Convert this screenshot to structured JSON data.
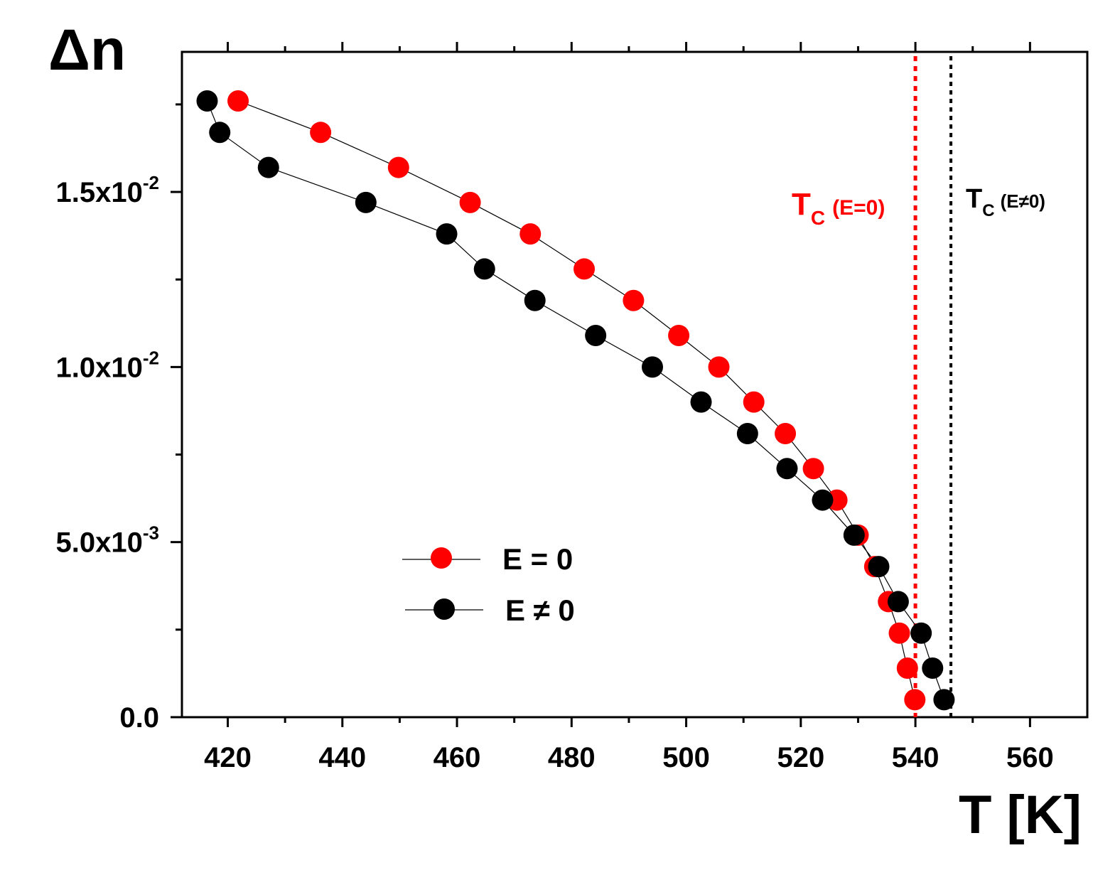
{
  "chart_data": {
    "type": "scatter",
    "title": "",
    "xlabel": "T [K]",
    "ylabel": "Δn",
    "xlim": [
      412,
      570
    ],
    "ylim": [
      0,
      0.019
    ],
    "x_ticks": [
      420,
      440,
      460,
      480,
      500,
      520,
      540,
      560
    ],
    "x_tick_labels": [
      "420",
      "440",
      "460",
      "480",
      "500",
      "520",
      "540",
      "560"
    ],
    "y_ticks": [
      0,
      0.005,
      0.01,
      0.015
    ],
    "y_tick_labels": [
      {
        "mantissa": "0.0",
        "exponent": ""
      },
      {
        "mantissa": "5.0x10",
        "exponent": "-3"
      },
      {
        "mantissa": "1.0x10",
        "exponent": "-2"
      },
      {
        "mantissa": "1.5x10",
        "exponent": "-2"
      }
    ],
    "grid": false,
    "legend_position": "lower-left-center",
    "series": [
      {
        "name": "E = 0",
        "color": "#ff0000",
        "x": [
          421.8,
          436.2,
          449.8,
          462.3,
          472.8,
          482.2,
          490.8,
          498.7,
          505.7,
          511.8,
          517.3,
          522.2,
          526.3,
          530.0,
          532.9,
          535.3,
          537.2,
          538.6,
          539.9
        ],
        "y": [
          0.0176,
          0.0167,
          0.0157,
          0.0147,
          0.0138,
          0.0128,
          0.0119,
          0.0109,
          0.01,
          0.009,
          0.0081,
          0.0071,
          0.0062,
          0.0052,
          0.0043,
          0.0033,
          0.0024,
          0.0014,
          0.0005
        ]
      },
      {
        "name": "E ≠ 0",
        "color": "#000000",
        "x": [
          416.4,
          418.6,
          427.1,
          444.1,
          458.2,
          464.8,
          473.6,
          484.2,
          494.1,
          502.6,
          510.7,
          517.6,
          523.8,
          529.3,
          533.6,
          537.0,
          541.0,
          543.0,
          545.0
        ],
        "y": [
          0.0176,
          0.0167,
          0.0157,
          0.0147,
          0.0138,
          0.0128,
          0.0119,
          0.0109,
          0.01,
          0.009,
          0.0081,
          0.0071,
          0.0062,
          0.0052,
          0.0043,
          0.0033,
          0.0024,
          0.0014,
          0.0005
        ]
      }
    ],
    "annotations": [
      {
        "label_main": "T",
        "label_sub": "C",
        "label_cond": "(E=0)",
        "x": 540.0,
        "color": "#ff0000",
        "style": "dotted-vertical-line"
      },
      {
        "label_main": "T",
        "label_sub": "C",
        "label_cond": "(E≠0)",
        "x": 546.2,
        "color": "#000000",
        "style": "dotted-vertical-line"
      }
    ]
  }
}
